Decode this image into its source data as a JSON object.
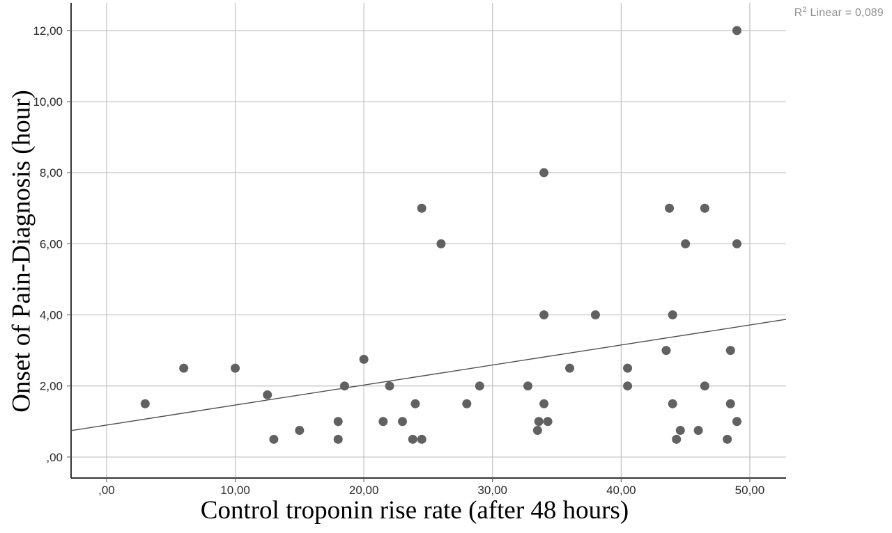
{
  "chart_data": {
    "type": "scatter",
    "title": "",
    "xlabel": "Control troponin rise rate (after 48 hours)",
    "ylabel": "Onset of Pain-Diagnosis (hour)",
    "annotation": {
      "prefix": "R",
      "sup": "2",
      "rest": " Linear = 0,089"
    },
    "r2_value": "0,089",
    "x_axis": {
      "min": -2.76,
      "max": 52.82,
      "grid": true,
      "ticks": [
        {
          "value": 0,
          "label": ",00"
        },
        {
          "value": 10,
          "label": "10,00"
        },
        {
          "value": 20,
          "label": "20,00"
        },
        {
          "value": 30,
          "label": "30,00"
        },
        {
          "value": 40,
          "label": "40,00"
        },
        {
          "value": 50,
          "label": "50,00"
        }
      ]
    },
    "y_axis": {
      "min": -0.59,
      "max": 12.78,
      "grid": true,
      "ticks": [
        {
          "value": 0,
          "label": ",00"
        },
        {
          "value": 2,
          "label": "2,00"
        },
        {
          "value": 4,
          "label": "4,00"
        },
        {
          "value": 6,
          "label": "6,00"
        },
        {
          "value": 8,
          "label": "8,00"
        },
        {
          "value": 10,
          "label": "10,00"
        },
        {
          "value": 12,
          "label": "12,00"
        }
      ]
    },
    "fit_line": {
      "slope": 0.0563,
      "intercept": 0.9
    },
    "points": [
      [
        3,
        1.5
      ],
      [
        6,
        2.5
      ],
      [
        10,
        2.5
      ],
      [
        12.5,
        1.75
      ],
      [
        13,
        0.5
      ],
      [
        15,
        0.75
      ],
      [
        18,
        1.0
      ],
      [
        18,
        0.5
      ],
      [
        18.5,
        2.0
      ],
      [
        20,
        2.75
      ],
      [
        21.5,
        1.0
      ],
      [
        22,
        2.0
      ],
      [
        23,
        1.0
      ],
      [
        23.8,
        0.5
      ],
      [
        24.5,
        0.5
      ],
      [
        24,
        1.5
      ],
      [
        24.5,
        7.0
      ],
      [
        26,
        6.0
      ],
      [
        28,
        1.5
      ],
      [
        29,
        2.0
      ],
      [
        32.75,
        2.0
      ],
      [
        33.5,
        0.75
      ],
      [
        33.6,
        1.0
      ],
      [
        34.3,
        1.0
      ],
      [
        34,
        1.5
      ],
      [
        34,
        4.0
      ],
      [
        34,
        8.0
      ],
      [
        36,
        2.5
      ],
      [
        38,
        4.0
      ],
      [
        40.5,
        2.5
      ],
      [
        40.5,
        2.0
      ],
      [
        43.5,
        3.0
      ],
      [
        43.75,
        7.0
      ],
      [
        44,
        4.0
      ],
      [
        44,
        1.5
      ],
      [
        44.3,
        0.5
      ],
      [
        44.6,
        0.75
      ],
      [
        45,
        6.0
      ],
      [
        46,
        0.75
      ],
      [
        46.5,
        7.0
      ],
      [
        46.5,
        2.0
      ],
      [
        48.5,
        3.0
      ],
      [
        48.5,
        1.5
      ],
      [
        48.25,
        0.5
      ],
      [
        49,
        1.0
      ],
      [
        49,
        6.0
      ],
      [
        49,
        12.0
      ]
    ]
  },
  "colors": {
    "point": "#616161",
    "grid": "#c6c6c6",
    "axis": "#333333",
    "fit_line": "#4f4f4f",
    "tick_label": "#2a2a2a",
    "annotation": "#8e9091"
  }
}
